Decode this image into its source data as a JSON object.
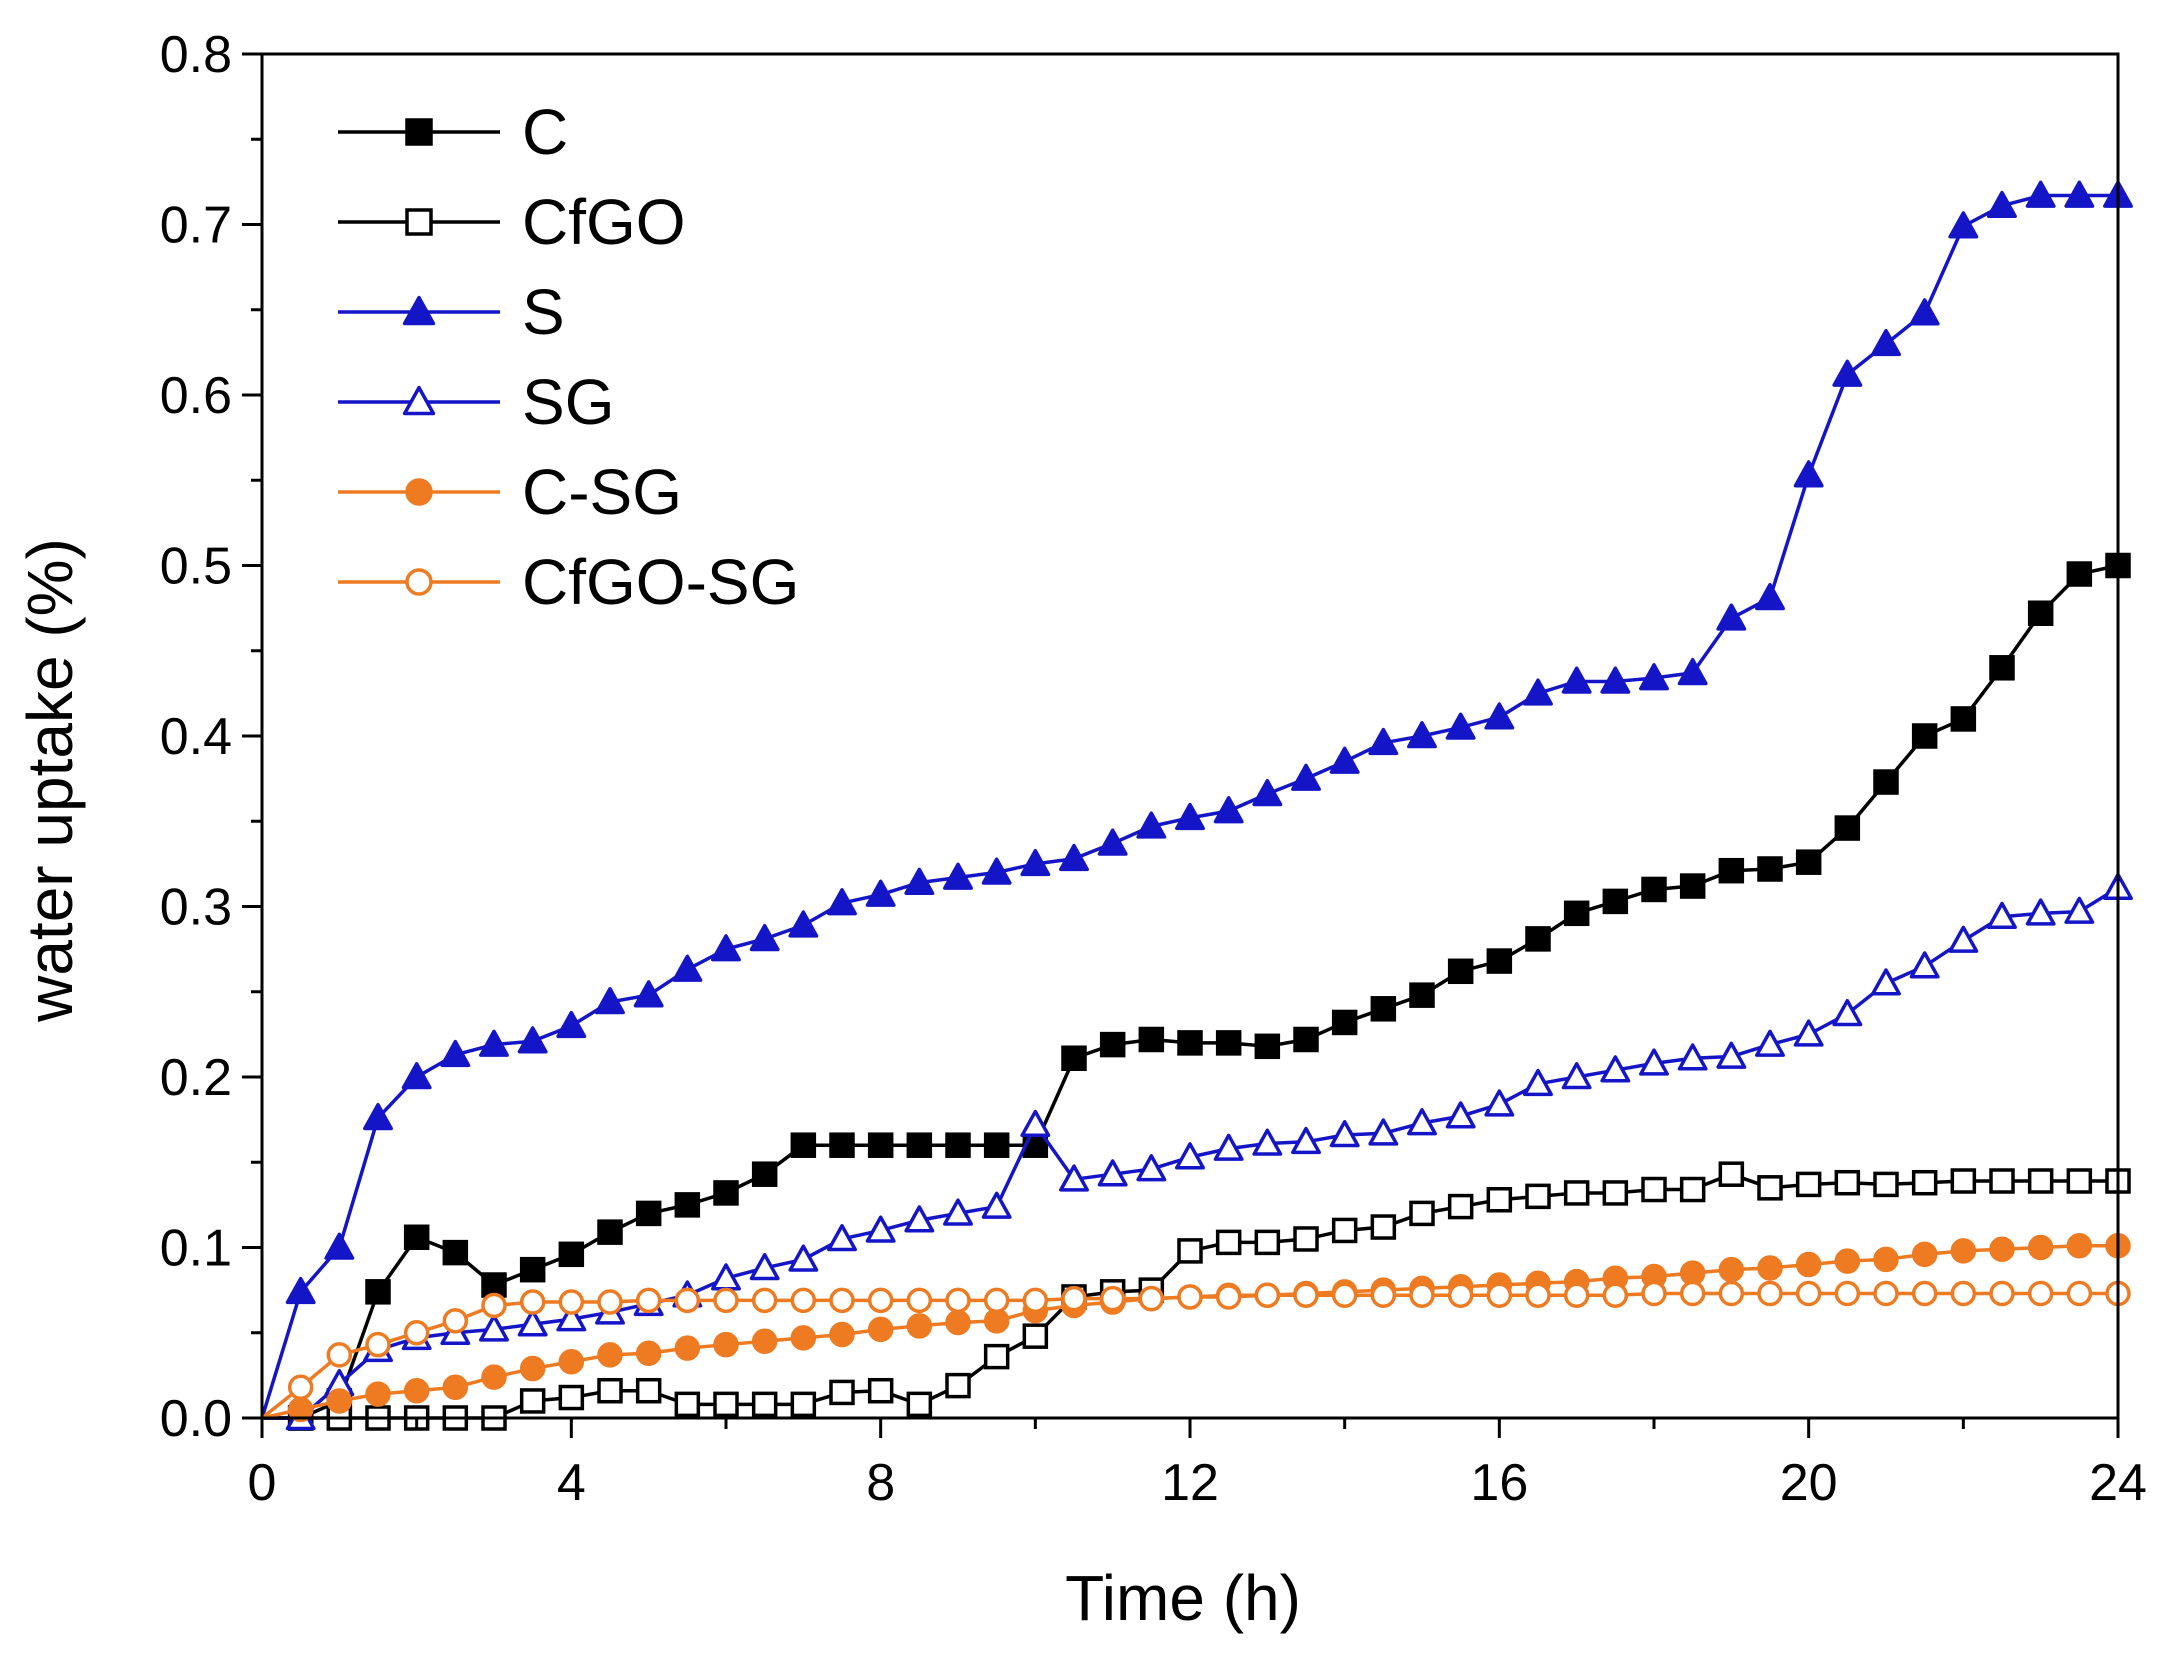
{
  "chart_data": {
    "type": "line",
    "title": "",
    "xlabel": "Time (h)",
    "ylabel": "water uptake (%)",
    "xlim": [
      0,
      24
    ],
    "ylim": [
      0,
      0.8
    ],
    "xticks": [
      0,
      4,
      8,
      12,
      16,
      20,
      24
    ],
    "yticks": [
      0.0,
      0.1,
      0.2,
      0.3,
      0.4,
      0.5,
      0.6,
      0.7,
      0.8
    ],
    "xtick_labels": [
      "0",
      "4",
      "8",
      "12",
      "16",
      "20",
      "24"
    ],
    "ytick_labels": [
      "0.0",
      "0.1",
      "0.2",
      "0.3",
      "0.4",
      "0.5",
      "0.6",
      "0.7",
      "0.8"
    ],
    "grid": false,
    "legend_position": "top-left",
    "x": [
      0,
      0.5,
      1,
      1.5,
      2,
      2.5,
      3,
      3.5,
      4,
      4.5,
      5,
      5.5,
      6,
      6.5,
      7,
      7.5,
      8,
      8.5,
      9,
      9.5,
      10,
      10.5,
      11,
      11.5,
      12,
      12.5,
      13,
      13.5,
      14,
      14.5,
      15,
      15.5,
      16,
      16.5,
      17,
      17.5,
      18,
      18.5,
      19,
      19.5,
      20,
      20.5,
      21,
      21.5,
      22,
      22.5,
      23,
      23.5,
      24
    ],
    "series": [
      {
        "name": "C",
        "color": "#000000",
        "marker": "square",
        "filled": true,
        "values": [
          0.0,
          0.0,
          0.01,
          0.074,
          0.106,
          0.097,
          0.078,
          0.087,
          0.096,
          0.109,
          0.12,
          0.125,
          0.132,
          0.143,
          0.16,
          0.16,
          0.16,
          0.16,
          0.16,
          0.16,
          0.16,
          0.211,
          0.219,
          0.222,
          0.22,
          0.22,
          0.218,
          0.222,
          0.232,
          0.24,
          0.248,
          0.262,
          0.268,
          0.281,
          0.296,
          0.303,
          0.31,
          0.312,
          0.321,
          0.322,
          0.326,
          0.346,
          0.373,
          0.4,
          0.41,
          0.44,
          0.472,
          0.495,
          0.5
        ]
      },
      {
        "name": "CfGO",
        "color": "#000000",
        "marker": "square",
        "filled": false,
        "values": [
          0.0,
          0.0,
          0.0,
          0.0,
          0.0,
          0.0,
          0.0,
          0.01,
          0.012,
          0.016,
          0.016,
          0.008,
          0.008,
          0.008,
          0.008,
          0.015,
          0.016,
          0.008,
          0.019,
          0.036,
          0.048,
          0.071,
          0.074,
          0.075,
          0.098,
          0.103,
          0.103,
          0.105,
          0.11,
          0.112,
          0.12,
          0.124,
          0.128,
          0.13,
          0.132,
          0.132,
          0.134,
          0.134,
          0.143,
          0.135,
          0.137,
          0.138,
          0.137,
          0.138,
          0.139,
          0.139,
          0.139,
          0.139,
          0.139
        ]
      },
      {
        "name": "S",
        "color": "#1515c8",
        "marker": "triangle",
        "filled": true,
        "values": [
          0.0,
          0.074,
          0.1,
          0.176,
          0.2,
          0.213,
          0.219,
          0.221,
          0.23,
          0.244,
          0.248,
          0.263,
          0.275,
          0.281,
          0.289,
          0.302,
          0.307,
          0.314,
          0.317,
          0.32,
          0.325,
          0.328,
          0.337,
          0.347,
          0.352,
          0.356,
          0.366,
          0.375,
          0.385,
          0.396,
          0.4,
          0.405,
          0.411,
          0.425,
          0.432,
          0.432,
          0.434,
          0.437,
          0.469,
          0.481,
          0.553,
          0.612,
          0.63,
          0.648,
          0.699,
          0.711,
          0.717,
          0.717,
          0.717
        ]
      },
      {
        "name": "SG",
        "color": "#1515c8",
        "marker": "triangle",
        "filled": false,
        "values": [
          0.0,
          0.0,
          0.02,
          0.04,
          0.047,
          0.05,
          0.052,
          0.055,
          0.058,
          0.062,
          0.067,
          0.072,
          0.082,
          0.088,
          0.093,
          0.105,
          0.11,
          0.116,
          0.12,
          0.124,
          0.172,
          0.14,
          0.143,
          0.146,
          0.153,
          0.158,
          0.161,
          0.162,
          0.166,
          0.167,
          0.173,
          0.177,
          0.184,
          0.196,
          0.2,
          0.204,
          0.208,
          0.211,
          0.212,
          0.219,
          0.225,
          0.237,
          0.255,
          0.265,
          0.28,
          0.294,
          0.296,
          0.297,
          0.311
        ]
      },
      {
        "name": "C-SG",
        "color": "#ee7b22",
        "marker": "circle",
        "filled": true,
        "values": [
          0.0,
          0.005,
          0.01,
          0.014,
          0.016,
          0.018,
          0.024,
          0.029,
          0.033,
          0.037,
          0.038,
          0.041,
          0.043,
          0.045,
          0.047,
          0.049,
          0.052,
          0.054,
          0.056,
          0.057,
          0.063,
          0.066,
          0.068,
          0.07,
          0.071,
          0.072,
          0.072,
          0.073,
          0.074,
          0.075,
          0.076,
          0.077,
          0.078,
          0.079,
          0.08,
          0.082,
          0.083,
          0.085,
          0.087,
          0.088,
          0.09,
          0.092,
          0.093,
          0.096,
          0.098,
          0.099,
          0.1,
          0.101,
          0.101
        ]
      },
      {
        "name": "CfGO-SG",
        "color": "#ee7b22",
        "marker": "circle",
        "filled": false,
        "values": [
          0.0,
          0.018,
          0.037,
          0.043,
          0.05,
          0.057,
          0.066,
          0.068,
          0.068,
          0.068,
          0.069,
          0.069,
          0.069,
          0.069,
          0.069,
          0.069,
          0.069,
          0.069,
          0.069,
          0.069,
          0.069,
          0.07,
          0.07,
          0.07,
          0.071,
          0.071,
          0.072,
          0.072,
          0.072,
          0.072,
          0.072,
          0.072,
          0.072,
          0.072,
          0.072,
          0.072,
          0.073,
          0.073,
          0.073,
          0.073,
          0.073,
          0.073,
          0.073,
          0.073,
          0.073,
          0.073,
          0.073,
          0.073,
          0.073
        ]
      }
    ]
  }
}
